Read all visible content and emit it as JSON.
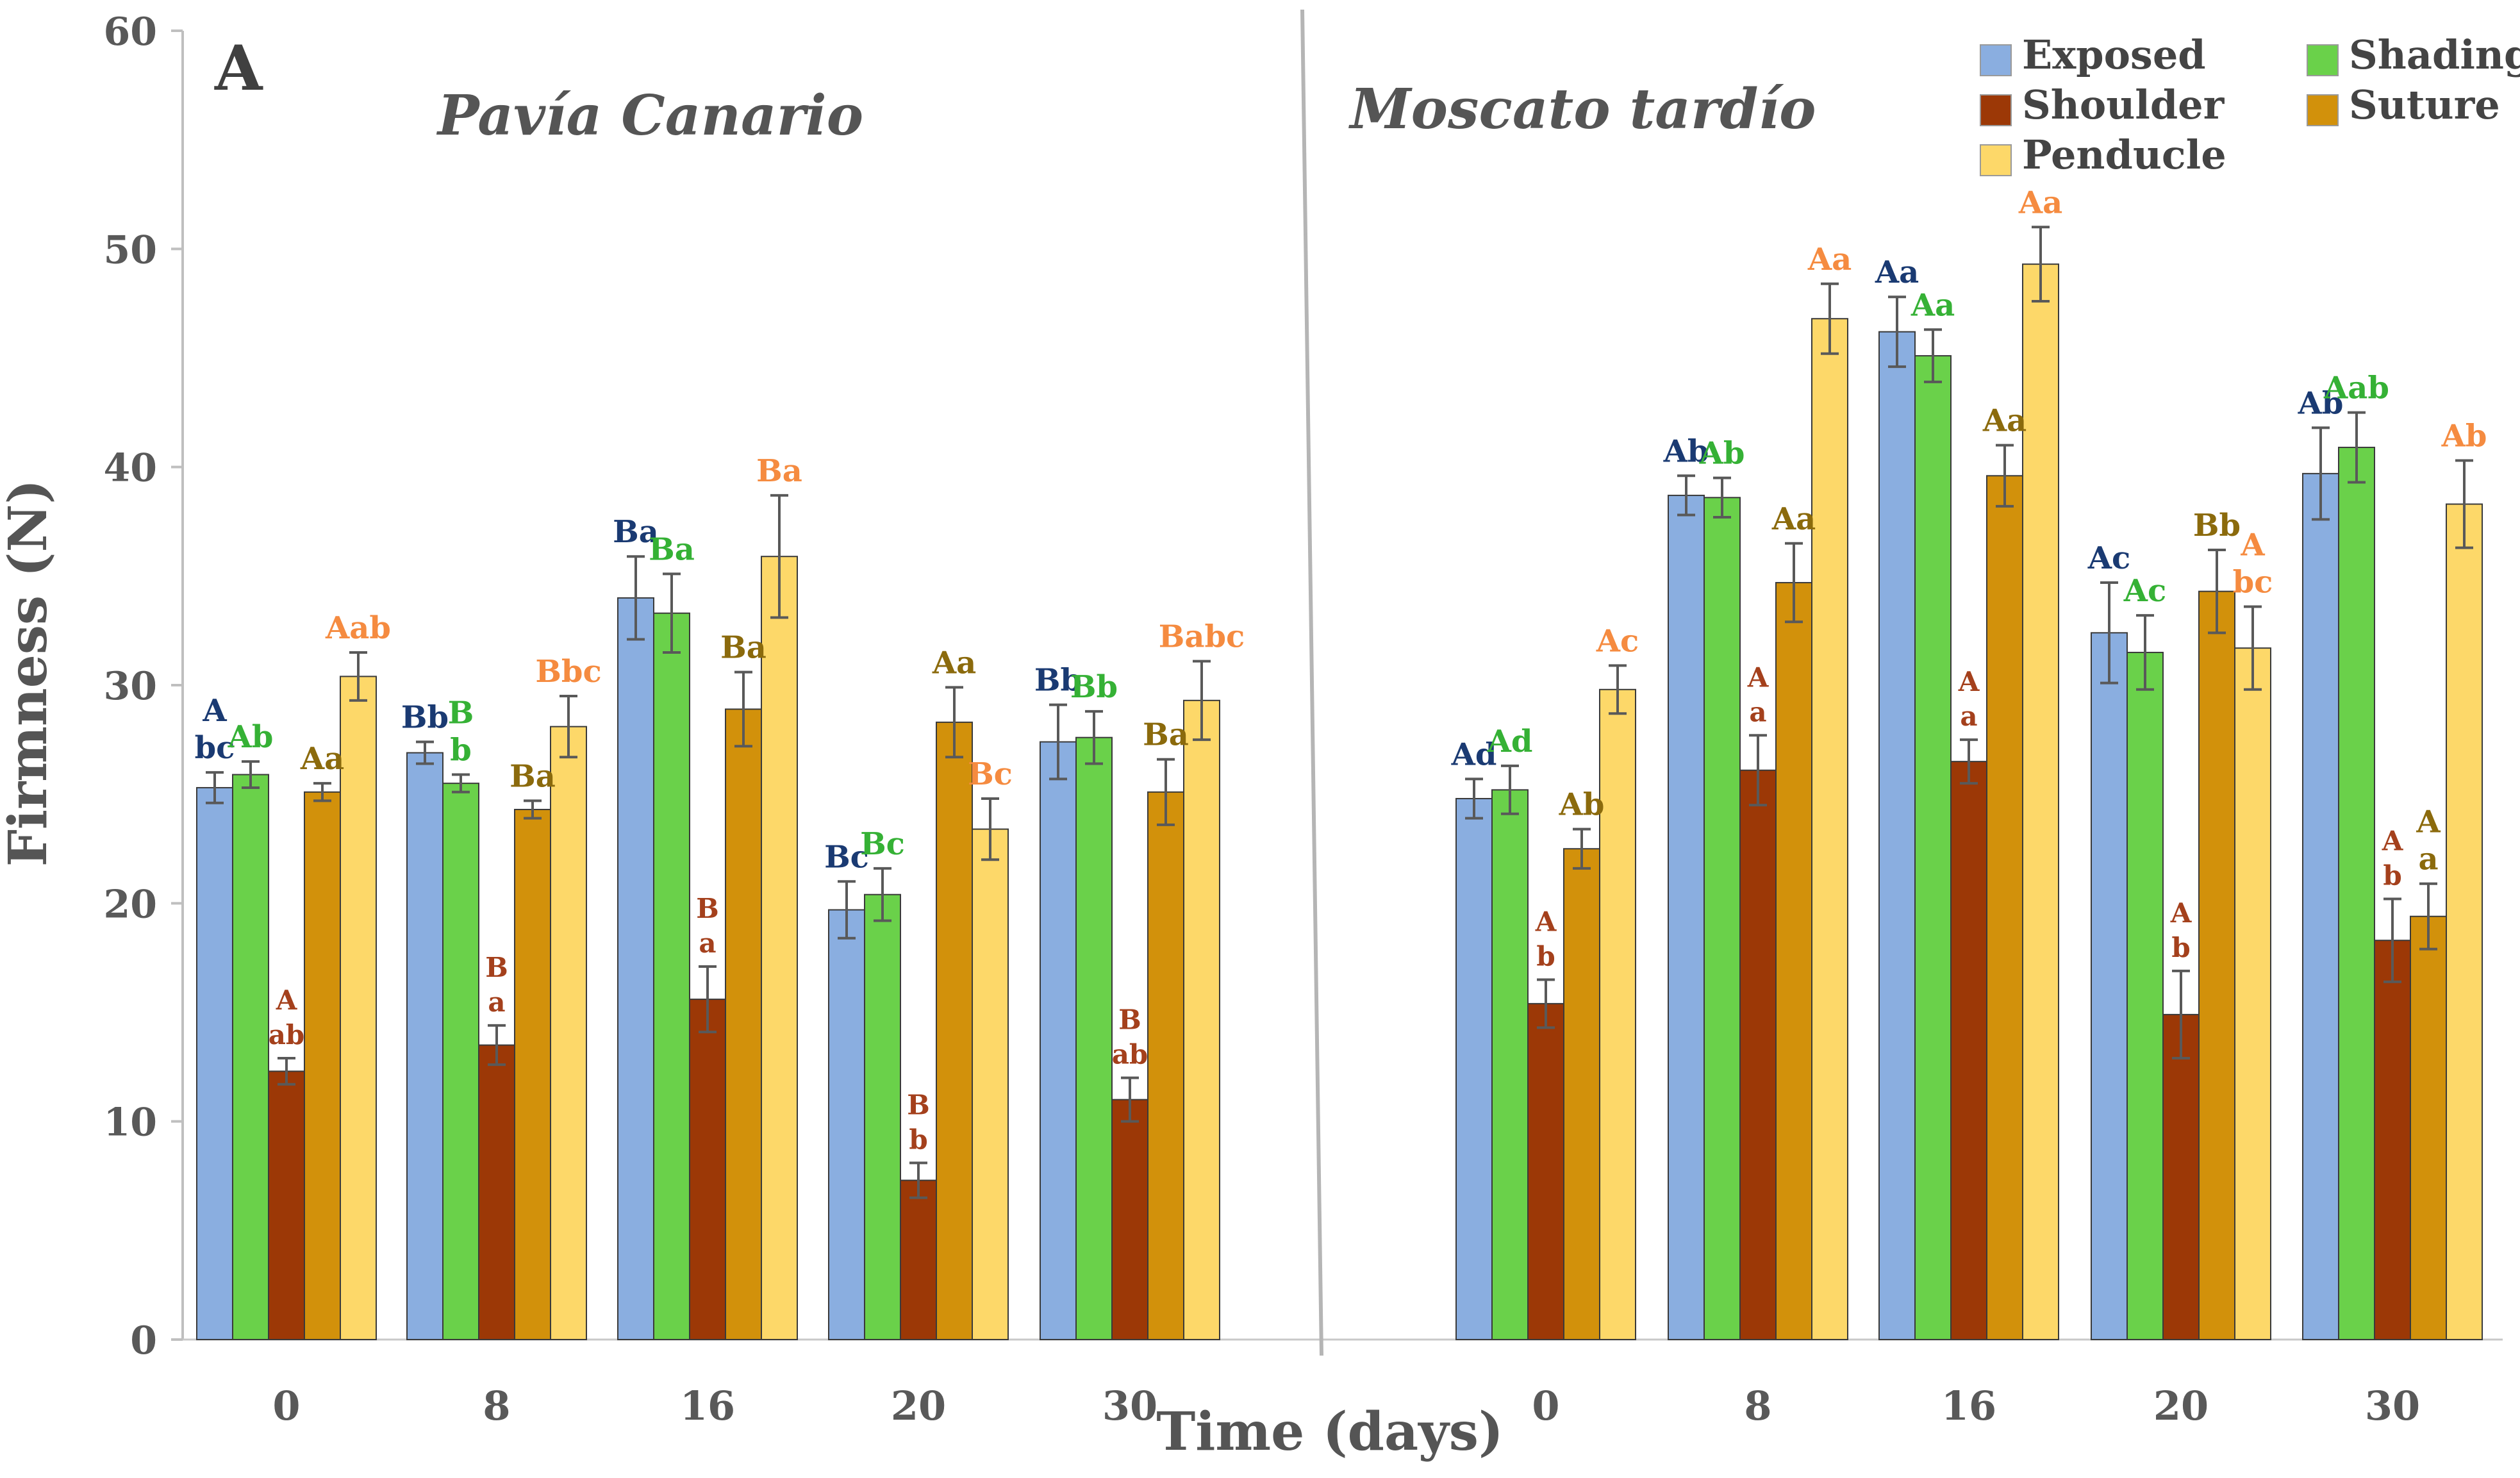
{
  "chart_data": {
    "type": "bar",
    "panel_label": "A",
    "ylabel": "Firmness (N)",
    "xlabel": "Time (days)",
    "ylim": [
      0,
      60
    ],
    "yticks": [
      0,
      10,
      20,
      30,
      40,
      50,
      60
    ],
    "legend_position": "top-right",
    "colors": {
      "Exposed": "#8aaee0",
      "Shading": "#6ad14a",
      "Shoulder": "#9c3806",
      "Suture": "#d2910b",
      "Penducle": "#fdd869"
    },
    "label_colors": {
      "Exposed": "#1a3a72",
      "Shading": "#35b135",
      "Shoulder": "#a4401c",
      "Suture": "#8b6a0c",
      "Penducle": "#f58b40"
    },
    "series_names": [
      "Exposed",
      "Shading",
      "Shoulder",
      "Suture",
      "Penducle"
    ],
    "panels": [
      {
        "name": "Pavía Canario",
        "categories": [
          "0",
          "8",
          "16",
          "20",
          "30"
        ],
        "series": [
          {
            "name": "Exposed",
            "values": [
              25.3,
              26.9,
              34.0,
              19.7,
              27.4
            ],
            "errors": [
              0.7,
              0.5,
              1.9,
              1.3,
              1.7
            ],
            "labels": [
              [
                "A",
                "bc"
              ],
              [
                "Bb"
              ],
              [
                "Ba"
              ],
              [
                "Bc"
              ],
              [
                "Bb"
              ]
            ]
          },
          {
            "name": "Shading",
            "values": [
              25.9,
              25.5,
              33.3,
              20.4,
              27.6
            ],
            "errors": [
              0.6,
              0.4,
              1.8,
              1.2,
              1.2
            ],
            "labels": [
              [
                "Ab"
              ],
              [
                "B",
                "b"
              ],
              [
                "Ba"
              ],
              [
                "Bc"
              ],
              [
                "Bb"
              ]
            ]
          },
          {
            "name": "Shoulder",
            "values": [
              12.3,
              13.5,
              15.6,
              7.3,
              11.0
            ],
            "errors": [
              0.6,
              0.9,
              1.5,
              0.8,
              1.0
            ],
            "labels": [
              [
                "A",
                "ab"
              ],
              [
                "B",
                "a"
              ],
              [
                "B",
                "a"
              ],
              [
                "B",
                "b"
              ],
              [
                "B",
                "ab"
              ]
            ]
          },
          {
            "name": "Suture",
            "values": [
              25.1,
              24.3,
              28.9,
              28.3,
              25.1
            ],
            "errors": [
              0.4,
              0.4,
              1.7,
              1.6,
              1.5
            ],
            "labels": [
              [
                "Aa"
              ],
              [
                "Ba"
              ],
              [
                "Ba"
              ],
              [
                "Aa"
              ],
              [
                "Ba"
              ]
            ]
          },
          {
            "name": "Penducle",
            "values": [
              30.4,
              28.1,
              35.9,
              23.4,
              29.3
            ],
            "errors": [
              1.1,
              1.4,
              2.8,
              1.4,
              1.8
            ],
            "labels": [
              [
                "Aab"
              ],
              [
                "Bbc"
              ],
              [
                "Ba"
              ],
              [
                "Bc"
              ],
              [
                "Babc"
              ]
            ]
          }
        ]
      },
      {
        "name": "Moscato tardío",
        "categories": [
          "0",
          "8",
          "16",
          "20",
          "30"
        ],
        "series": [
          {
            "name": "Exposed",
            "values": [
              24.8,
              38.7,
              46.2,
              32.4,
              39.7
            ],
            "errors": [
              0.9,
              0.9,
              1.6,
              2.3,
              2.1
            ],
            "labels": [
              [
                "Ad"
              ],
              [
                "Ab"
              ],
              [
                "Aa"
              ],
              [
                "Ac"
              ],
              [
                "Ab"
              ]
            ]
          },
          {
            "name": "Shading",
            "values": [
              25.2,
              38.6,
              45.1,
              31.5,
              40.9
            ],
            "errors": [
              1.1,
              0.9,
              1.2,
              1.7,
              1.6
            ],
            "labels": [
              [
                "Ad"
              ],
              [
                "Ab"
              ],
              [
                "Aa"
              ],
              [
                "Ac"
              ],
              [
                "Aab"
              ]
            ]
          },
          {
            "name": "Shoulder",
            "values": [
              15.4,
              26.1,
              26.5,
              14.9,
              18.3
            ],
            "errors": [
              1.1,
              1.6,
              1.0,
              2.0,
              1.9
            ],
            "labels": [
              [
                "A",
                "b"
              ],
              [
                "A",
                "a"
              ],
              [
                "A",
                "a"
              ],
              [
                "A",
                "b"
              ],
              [
                "A",
                "b"
              ]
            ]
          },
          {
            "name": "Suture",
            "values": [
              22.5,
              34.7,
              39.6,
              34.3,
              19.4
            ],
            "errors": [
              0.9,
              1.8,
              1.4,
              1.9,
              1.5
            ],
            "labels": [
              [
                "Ab"
              ],
              [
                "Aa"
              ],
              [
                "Aa"
              ],
              [
                "Bb"
              ],
              [
                "A",
                "a"
              ]
            ]
          },
          {
            "name": "Penducle",
            "values": [
              29.8,
              46.8,
              49.3,
              31.7,
              38.3
            ],
            "errors": [
              1.1,
              1.6,
              1.7,
              1.9,
              2.0
            ],
            "labels": [
              [
                "Ac"
              ],
              [
                "Aa"
              ],
              [
                "Aa"
              ],
              [
                "A",
                "bc"
              ],
              [
                "Ab"
              ]
            ]
          }
        ]
      }
    ]
  }
}
